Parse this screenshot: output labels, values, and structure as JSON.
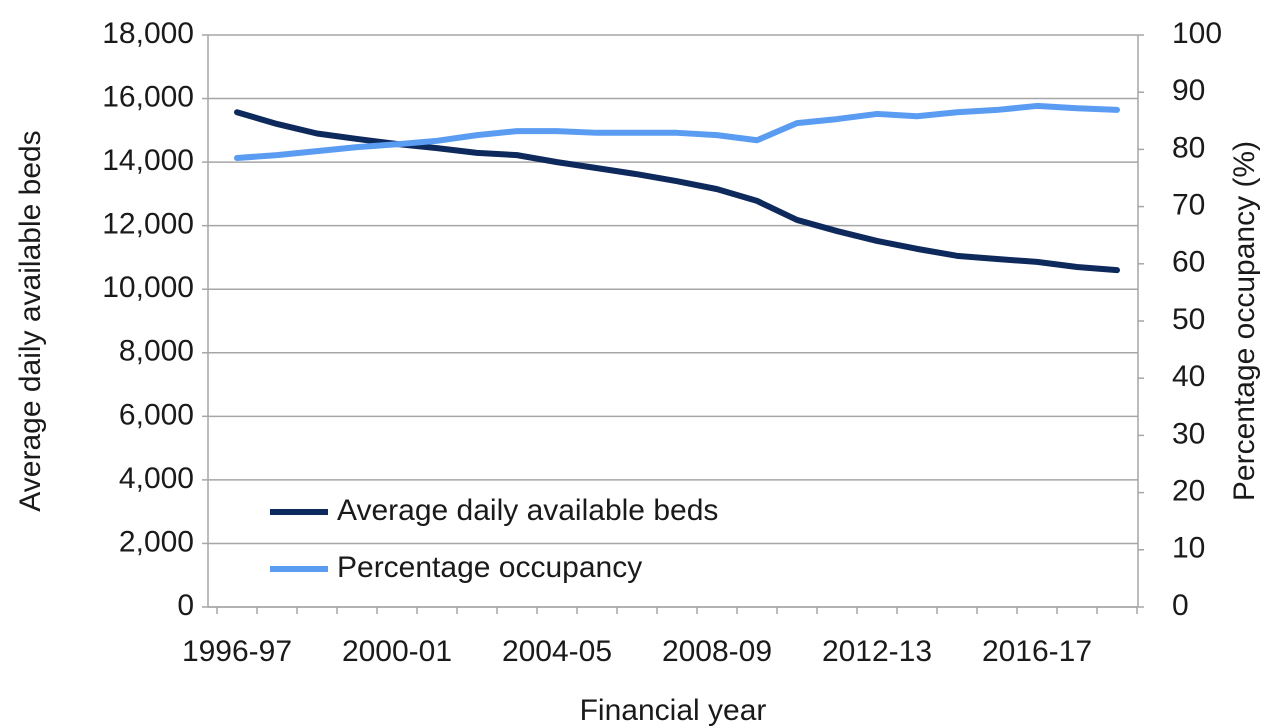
{
  "chart_data": {
    "type": "line",
    "x_label": "Financial year",
    "y_label": "Average daily available beds",
    "y2_label": "Percentage occupancy (%)",
    "categories": [
      "1996-97",
      null,
      null,
      null,
      "2000-01",
      null,
      null,
      null,
      "2004-05",
      null,
      null,
      null,
      "2008-09",
      null,
      null,
      null,
      "2012-13",
      null,
      null,
      null,
      "2016-17",
      null,
      null
    ],
    "series": [
      {
        "name": "Average daily available beds",
        "color": "#0e2a5c",
        "values": [
          15570,
          15200,
          14900,
          14730,
          14570,
          14440,
          14290,
          14220,
          14000,
          13810,
          13620,
          13400,
          13150,
          12780,
          12180,
          11830,
          11520,
          11270,
          11050,
          10950,
          10860,
          10700,
          10600
        ]
      },
      {
        "name": "Percentage occupancy",
        "color": "#5a9cf2",
        "axis": "y2",
        "values": [
          78.5,
          79.0,
          79.7,
          80.4,
          80.9,
          81.5,
          82.5,
          83.2,
          83.2,
          82.9,
          82.9,
          82.9,
          82.5,
          81.6,
          84.6,
          85.3,
          86.2,
          85.8,
          86.5,
          86.9,
          87.6,
          87.2,
          86.9
        ]
      }
    ],
    "ylim": [
      0,
      18000
    ],
    "yticks": [
      0,
      {
        "value": 2000,
        "label": "2,000"
      },
      {
        "value": 4000,
        "label": "4,000"
      },
      {
        "value": 6000,
        "label": "6,000"
      },
      {
        "value": 8000,
        "label": "8,000"
      },
      {
        "value": 10000,
        "label": "10,000"
      },
      {
        "value": 12000,
        "label": "12,000"
      },
      {
        "value": 14000,
        "label": "14,000"
      },
      {
        "value": 16000,
        "label": "16,000"
      },
      {
        "value": 18000,
        "label": "18,000"
      }
    ],
    "y2lim": [
      0,
      100
    ],
    "y2ticks": [
      0,
      10,
      20,
      30,
      40,
      50,
      60,
      70,
      80,
      90,
      100
    ],
    "grid": true,
    "legend": "lower left"
  }
}
